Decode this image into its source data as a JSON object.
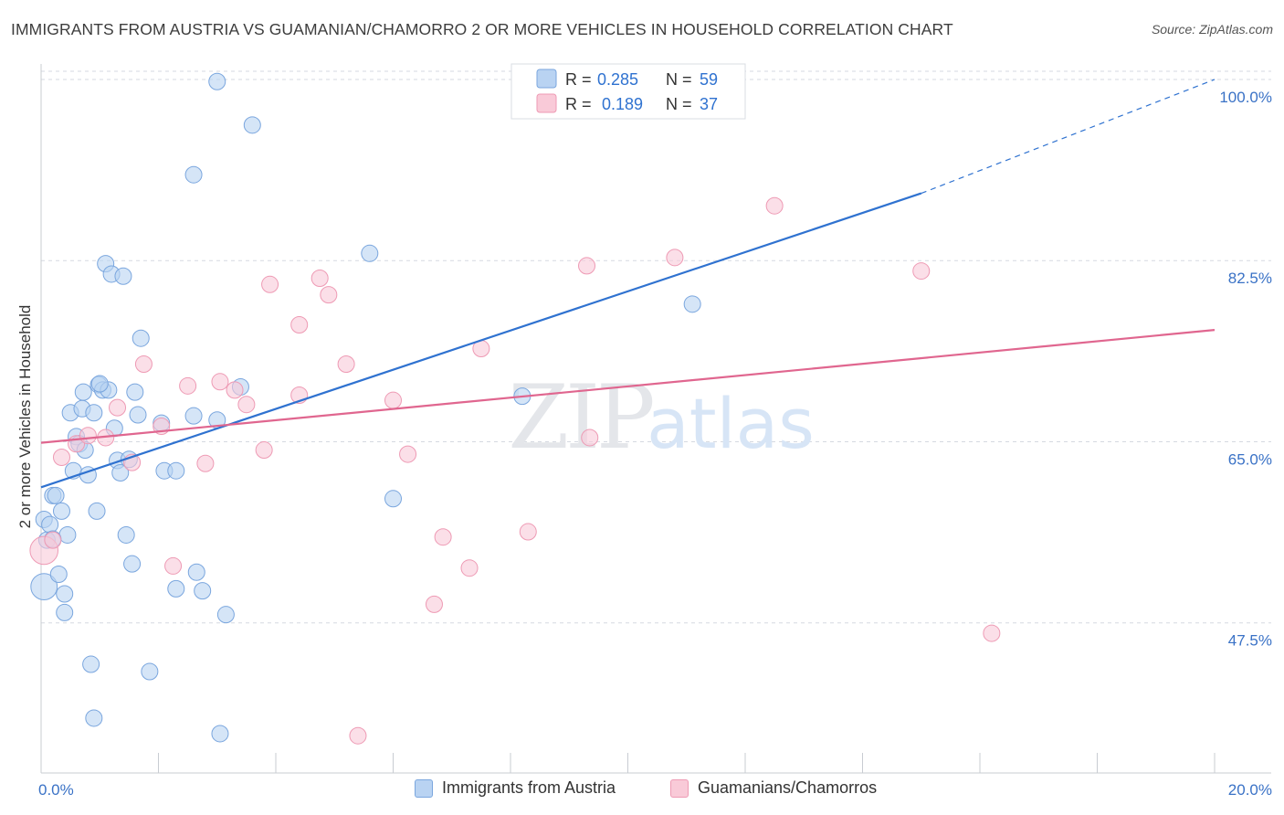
{
  "title": "IMMIGRANTS FROM AUSTRIA VS GUAMANIAN/CHAMORRO 2 OR MORE VEHICLES IN HOUSEHOLD CORRELATION CHART",
  "source": "Source: ZipAtlas.com",
  "watermark": {
    "zip": "ZIP",
    "atlas": "atlas"
  },
  "colors": {
    "blue_fill": "#b9d3f2",
    "blue_stroke": "#7aa6de",
    "blue_line": "#2f72d0",
    "pink_fill": "#f9cad8",
    "pink_stroke": "#ee9ab4",
    "pink_line": "#e0668f",
    "axis_text": "#3a72c6",
    "grid": "#d5d9e0"
  },
  "legend": {
    "r_label": "R =",
    "n_label": "N =",
    "rows": [
      {
        "series": "blue",
        "r": "0.285",
        "n": "59"
      },
      {
        "series": "pink",
        "r": "0.189",
        "n": "37"
      }
    ]
  },
  "chart_data": {
    "type": "scatter",
    "title": "IMMIGRANTS FROM AUSTRIA VS GUAMANIAN/CHAMORRO 2 OR MORE VEHICLES IN HOUSEHOLD CORRELATION CHART",
    "xlabel": "",
    "ylabel": "2 or more Vehicles in Household",
    "xlim": [
      0,
      20
    ],
    "ylim": [
      33,
      101.5
    ],
    "x_tick_labels": [
      "0.0%",
      "20.0%"
    ],
    "y_ticks": [
      {
        "value": 100,
        "label": "100.0%"
      },
      {
        "value": 82.5,
        "label": "82.5%"
      },
      {
        "value": 65,
        "label": "65.0%"
      },
      {
        "value": 47.5,
        "label": "47.5%"
      }
    ],
    "series": [
      {
        "name": "Immigrants from Austria",
        "color": "blue",
        "r": 0.285,
        "n": 59,
        "trend": {
          "x0": 0,
          "y0": 60.6,
          "x1": 15,
          "y1": 89.0,
          "dash_to_x": 20,
          "dash_to_y": 100
        },
        "points": [
          [
            0.05,
            51.0,
            1.6
          ],
          [
            0.05,
            57.5,
            1.0
          ],
          [
            0.1,
            55.5,
            1.0
          ],
          [
            0.15,
            57.0,
            1.0
          ],
          [
            0.2,
            59.8,
            1.0
          ],
          [
            0.25,
            59.8,
            1.0
          ],
          [
            0.3,
            52.2,
            1.0
          ],
          [
            0.35,
            58.3,
            1.0
          ],
          [
            0.4,
            48.5,
            1.0
          ],
          [
            0.45,
            56.0,
            1.0
          ],
          [
            0.5,
            67.8,
            1.0
          ],
          [
            0.55,
            62.2,
            1.0
          ],
          [
            0.6,
            65.5,
            1.0
          ],
          [
            0.65,
            64.8,
            1.0
          ],
          [
            0.7,
            68.2,
            1.0
          ],
          [
            0.72,
            69.8,
            1.0
          ],
          [
            0.75,
            64.2,
            1.0
          ],
          [
            0.8,
            61.8,
            1.0
          ],
          [
            0.85,
            43.5,
            1.0
          ],
          [
            0.9,
            67.8,
            1.0
          ],
          [
            0.95,
            58.3,
            1.0
          ],
          [
            0.98,
            70.5,
            1.0
          ],
          [
            1.05,
            70.0,
            1.0
          ],
          [
            1.1,
            82.2,
            1.0
          ],
          [
            1.15,
            70.0,
            1.0
          ],
          [
            1.2,
            81.2,
            1.0
          ],
          [
            1.25,
            66.3,
            1.0
          ],
          [
            1.3,
            63.2,
            1.0
          ],
          [
            1.35,
            62.0,
            1.0
          ],
          [
            1.4,
            81.0,
            1.0
          ],
          [
            1.45,
            56.0,
            1.0
          ],
          [
            1.5,
            63.3,
            1.0
          ],
          [
            1.55,
            53.2,
            1.0
          ],
          [
            1.6,
            69.8,
            1.0
          ],
          [
            1.65,
            67.6,
            1.0
          ],
          [
            1.7,
            75.0,
            1.0
          ],
          [
            1.85,
            42.8,
            1.0
          ],
          [
            2.05,
            66.8,
            1.0
          ],
          [
            2.1,
            62.2,
            1.0
          ],
          [
            2.3,
            62.2,
            1.0
          ],
          [
            2.3,
            50.8,
            1.0
          ],
          [
            2.6,
            90.8,
            1.0
          ],
          [
            2.6,
            67.5,
            1.0
          ],
          [
            2.65,
            52.4,
            1.0
          ],
          [
            2.75,
            50.6,
            1.0
          ],
          [
            3.0,
            99.8,
            1.0
          ],
          [
            3.0,
            67.1,
            1.0
          ],
          [
            3.05,
            36.8,
            1.0
          ],
          [
            3.15,
            48.3,
            1.0
          ],
          [
            3.4,
            70.3,
            1.0
          ],
          [
            3.6,
            95.6,
            1.0
          ],
          [
            5.6,
            83.2,
            1.0
          ],
          [
            6.0,
            59.5,
            1.0
          ],
          [
            8.2,
            69.4,
            1.0
          ],
          [
            11.1,
            78.3,
            1.0
          ],
          [
            0.9,
            38.3,
            1.0
          ],
          [
            0.2,
            55.6,
            1.0
          ],
          [
            1.0,
            70.6,
            1.0
          ],
          [
            0.4,
            50.3,
            1.0
          ]
        ]
      },
      {
        "name": "Guamanians/Chamorros",
        "color": "pink",
        "r": 0.189,
        "n": 37,
        "trend": {
          "x0": 0,
          "y0": 64.9,
          "x1": 20,
          "y1": 75.8
        },
        "points": [
          [
            0.05,
            54.5,
            1.7
          ],
          [
            0.2,
            55.5,
            1.0
          ],
          [
            0.35,
            63.5,
            1.0
          ],
          [
            0.6,
            64.8,
            1.0
          ],
          [
            0.8,
            65.6,
            1.0
          ],
          [
            1.1,
            65.4,
            1.0
          ],
          [
            1.3,
            68.3,
            1.0
          ],
          [
            1.55,
            63.0,
            1.0
          ],
          [
            1.75,
            72.5,
            1.0
          ],
          [
            2.05,
            66.5,
            1.0
          ],
          [
            2.25,
            53.0,
            1.0
          ],
          [
            2.5,
            70.4,
            1.0
          ],
          [
            2.8,
            62.9,
            1.0
          ],
          [
            3.05,
            70.8,
            1.0
          ],
          [
            3.3,
            70.0,
            1.0
          ],
          [
            3.5,
            68.6,
            1.0
          ],
          [
            3.8,
            64.2,
            1.0
          ],
          [
            3.9,
            80.2,
            1.0
          ],
          [
            4.4,
            69.5,
            1.0
          ],
          [
            4.4,
            76.3,
            1.0
          ],
          [
            4.75,
            80.8,
            1.0
          ],
          [
            4.9,
            79.2,
            1.0
          ],
          [
            5.2,
            72.5,
            1.0
          ],
          [
            5.4,
            36.6,
            1.0
          ],
          [
            6.0,
            69.0,
            1.0
          ],
          [
            6.25,
            63.8,
            1.0
          ],
          [
            6.7,
            49.3,
            1.0
          ],
          [
            6.85,
            55.8,
            1.0
          ],
          [
            7.3,
            52.8,
            1.0
          ],
          [
            7.5,
            74.0,
            1.0
          ],
          [
            8.3,
            56.3,
            1.0
          ],
          [
            9.3,
            82.0,
            1.0
          ],
          [
            9.35,
            65.4,
            1.0
          ],
          [
            10.8,
            82.8,
            1.0
          ],
          [
            12.5,
            87.8,
            1.0
          ],
          [
            15.0,
            81.5,
            1.0
          ],
          [
            16.2,
            46.5,
            1.0
          ]
        ]
      }
    ]
  },
  "bottom_legend": [
    {
      "series": "blue",
      "label": "Immigrants from Austria"
    },
    {
      "series": "pink",
      "label": "Guamanians/Chamorros"
    }
  ]
}
